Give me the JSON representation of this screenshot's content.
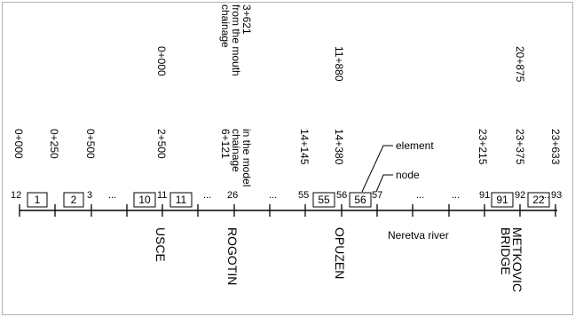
{
  "mouth_chainages": [
    {
      "label": "0+000"
    },
    {
      "label": "3+621"
    },
    {
      "label": "11+880"
    },
    {
      "label": "20+875"
    }
  ],
  "mouth_caption": [
    "chainage",
    "from the mouth"
  ],
  "model_chainages": [
    {
      "label": "0+000"
    },
    {
      "label": "0+250"
    },
    {
      "label": "0+500"
    },
    {
      "label": "2+500"
    },
    {
      "label": "6+121"
    },
    {
      "label": "14+145"
    },
    {
      "label": "14+380"
    },
    {
      "label": "23+215"
    },
    {
      "label": "23+375"
    },
    {
      "label": "23+633"
    }
  ],
  "model_caption": [
    "chainage",
    "in the model"
  ],
  "nodes": [
    "12",
    "3",
    "11",
    "26",
    "55",
    "56",
    "57",
    "91",
    "92",
    "93"
  ],
  "ellipses": [
    "...",
    "...",
    "...",
    "...",
    "...",
    "..."
  ],
  "elements": [
    "1",
    "2",
    "10",
    "11",
    "55",
    "56",
    "91",
    "22"
  ],
  "legend": {
    "element": "element",
    "node": "node"
  },
  "places": [
    {
      "lines": [
        "USCE"
      ]
    },
    {
      "lines": [
        "ROGOTIN"
      ]
    },
    {
      "lines": [
        "OPUZEN"
      ]
    },
    {
      "lines": [
        "METKOVIC",
        "BRIDGE"
      ]
    }
  ],
  "river_label": "Neretva river"
}
